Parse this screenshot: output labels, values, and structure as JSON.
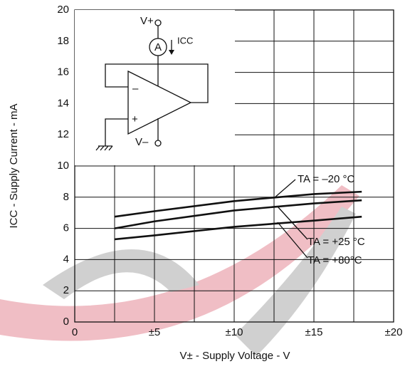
{
  "chart_data": {
    "type": "line",
    "x_label": "V± - Supply Voltage - V",
    "y_label": "ICC - Supply Current - mA",
    "xlim": [
      0,
      20
    ],
    "ylim": [
      0,
      20
    ],
    "xticks": [
      0,
      {
        "value": 5,
        "label": "±5"
      },
      {
        "value": 10,
        "label": "±10"
      },
      {
        "value": 15,
        "label": "±15"
      },
      {
        "value": 20,
        "label": "±20"
      }
    ],
    "xminor": [
      2.5,
      7.5,
      12.5,
      17.5
    ],
    "yticks": [
      0,
      2,
      4,
      6,
      8,
      10,
      12,
      14,
      16,
      18,
      20
    ],
    "grid": true,
    "x": [
      2.5,
      5,
      10,
      15,
      18
    ],
    "series": [
      {
        "name": "TA = –20 °C",
        "color": "#111111",
        "values": [
          6.75,
          7.1,
          7.75,
          8.2,
          8.35
        ]
      },
      {
        "name": "TA = +25 °C",
        "color": "#111111",
        "values": [
          6.0,
          6.45,
          7.15,
          7.6,
          7.8
        ]
      },
      {
        "name": "TA = +80°C",
        "color": "#111111",
        "values": [
          5.3,
          5.55,
          6.1,
          6.5,
          6.75
        ]
      }
    ],
    "inset_labels": [
      "V+",
      "A",
      "ICC",
      "–",
      "+",
      "V–"
    ]
  }
}
